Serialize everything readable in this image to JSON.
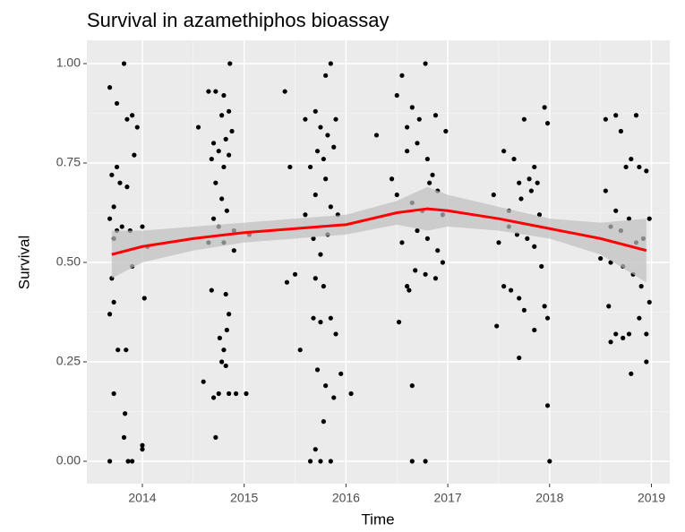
{
  "chart_data": {
    "type": "scatter",
    "title": "Survival in azamethiphos bioassay",
    "x_label": "Time",
    "y_label": "Survival",
    "point_color": "#000000",
    "x": [
      2013.68,
      2013.75,
      2013.82,
      2013.85,
      2013.9,
      2013.95,
      2013.7,
      2013.75,
      2013.78,
      2013.85,
      2013.92,
      2013.68,
      2013.72,
      2013.75,
      2013.8,
      2013.88,
      2014.0,
      2014.02,
      2013.9,
      2013.7,
      2013.68,
      2013.72,
      2013.76,
      2013.84,
      2013.72,
      2013.83,
      2013.82,
      2013.86,
      2013.9,
      2013.68,
      2014.0,
      2014.0,
      2014.05,
      2013.72,
      2014.55,
      2014.65,
      2014.72,
      2014.8,
      2014.86,
      2014.78,
      2014.85,
      2014.7,
      2014.75,
      2014.82,
      2014.88,
      2014.68,
      2014.8,
      2014.85,
      2014.72,
      2014.78,
      2014.83,
      2014.7,
      2014.9,
      2014.75,
      2014.65,
      2014.8,
      2014.68,
      2014.82,
      2014.85,
      2014.76,
      2014.8,
      2014.83,
      2014.78,
      2014.82,
      2014.6,
      2014.7,
      2014.75,
      2014.85,
      2014.92,
      2015.02,
      2014.72,
      2014.9,
      2015.05,
      2015.4,
      2015.45,
      2015.42,
      2015.5,
      2015.55,
      2015.6,
      2015.7,
      2015.8,
      2015.85,
      2015.75,
      2015.82,
      2015.9,
      2015.72,
      2015.78,
      2015.88,
      2015.65,
      2015.8,
      2015.7,
      2015.85,
      2015.92,
      2015.68,
      2015.75,
      2015.82,
      2015.7,
      2015.78,
      2015.68,
      2015.75,
      2015.85,
      2015.9,
      2015.72,
      2015.8,
      2015.88,
      2015.95,
      2016.05,
      2015.7,
      2015.65,
      2015.75,
      2015.85,
      2015.78,
      2015.6,
      2016.3,
      2016.5,
      2016.55,
      2016.6,
      2016.65,
      2016.72,
      2016.78,
      2016.88,
      2016.98,
      2016.45,
      2016.6,
      2016.7,
      2016.8,
      2016.85,
      2016.5,
      2016.65,
      2016.75,
      2016.82,
      2016.9,
      2016.95,
      2016.55,
      2016.7,
      2016.8,
      2016.9,
      2016.6,
      2016.68,
      2016.78,
      2016.88,
      2016.95,
      2016.52,
      2016.62,
      2016.65,
      2016.65,
      2016.78,
      2017.45,
      2017.55,
      2017.65,
      2017.75,
      2017.85,
      2017.95,
      2017.98,
      2017.7,
      2017.8,
      2017.88,
      2017.6,
      2017.72,
      2017.82,
      2017.9,
      2017.5,
      2017.6,
      2017.68,
      2017.78,
      2017.85,
      2017.92,
      2017.55,
      2017.62,
      2017.7,
      2017.75,
      2017.85,
      2017.95,
      2017.98,
      2017.48,
      2017.7,
      2017.98,
      2018.0,
      2018.55,
      2018.65,
      2018.85,
      2018.7,
      2018.55,
      2018.65,
      2018.75,
      2018.8,
      2018.88,
      2018.95,
      2018.6,
      2018.7,
      2018.78,
      2018.85,
      2018.92,
      2018.98,
      2018.6,
      2018.72,
      2018.82,
      2018.9,
      2018.58,
      2018.65,
      2018.72,
      2018.78,
      2018.6,
      2018.88,
      2018.98,
      2018.95,
      2018.95,
      2018.8,
      2018.5
    ],
    "values": [
      0.94,
      0.9,
      1.0,
      0.86,
      0.87,
      0.84,
      0.72,
      0.74,
      0.7,
      0.69,
      0.77,
      0.61,
      0.56,
      0.58,
      0.59,
      0.58,
      0.59,
      0.41,
      0.49,
      0.46,
      0.37,
      0.4,
      0.28,
      0.28,
      0.17,
      0.12,
      0.06,
      0.0,
      0.0,
      0.0,
      0.04,
      0.03,
      0.54,
      0.64,
      0.84,
      0.93,
      0.93,
      0.92,
      1.0,
      0.87,
      0.88,
      0.8,
      0.78,
      0.81,
      0.83,
      0.76,
      0.74,
      0.77,
      0.7,
      0.66,
      0.63,
      0.61,
      0.58,
      0.59,
      0.55,
      0.55,
      0.43,
      0.42,
      0.37,
      0.31,
      0.28,
      0.33,
      0.25,
      0.24,
      0.2,
      0.16,
      0.17,
      0.17,
      0.17,
      0.17,
      0.06,
      0.53,
      0.57,
      0.93,
      0.74,
      0.45,
      0.47,
      0.28,
      0.86,
      0.88,
      0.97,
      1.0,
      0.84,
      0.82,
      0.86,
      0.78,
      0.76,
      0.79,
      0.74,
      0.71,
      0.67,
      0.64,
      0.62,
      0.56,
      0.52,
      0.57,
      0.46,
      0.44,
      0.36,
      0.35,
      0.36,
      0.32,
      0.23,
      0.19,
      0.16,
      0.22,
      0.17,
      0.03,
      0.0,
      0.0,
      0.0,
      0.1,
      0.62,
      0.82,
      0.92,
      0.97,
      0.84,
      0.89,
      0.86,
      1.0,
      0.87,
      0.83,
      0.71,
      0.78,
      0.8,
      0.76,
      0.72,
      0.67,
      0.65,
      0.63,
      0.7,
      0.68,
      0.62,
      0.55,
      0.58,
      0.56,
      0.53,
      0.44,
      0.48,
      0.47,
      0.46,
      0.5,
      0.35,
      0.43,
      0.19,
      0.0,
      0.0,
      0.67,
      0.78,
      0.76,
      0.86,
      0.74,
      0.89,
      0.85,
      0.7,
      0.71,
      0.7,
      0.63,
      0.66,
      0.68,
      0.62,
      0.55,
      0.59,
      0.57,
      0.56,
      0.54,
      0.49,
      0.44,
      0.43,
      0.41,
      0.38,
      0.33,
      0.39,
      0.36,
      0.34,
      0.26,
      0.14,
      0.0,
      0.86,
      0.87,
      0.87,
      0.83,
      0.68,
      0.63,
      0.74,
      0.76,
      0.74,
      0.73,
      0.59,
      0.58,
      0.61,
      0.55,
      0.56,
      0.61,
      0.5,
      0.49,
      0.47,
      0.44,
      0.39,
      0.32,
      0.31,
      0.32,
      0.3,
      0.36,
      0.4,
      0.32,
      0.25,
      0.22,
      0.51
    ],
    "smooth": {
      "color": "#ff0000",
      "band_color": "#bfbfbf",
      "x": [
        2013.7,
        2014.0,
        2014.5,
        2015.0,
        2015.5,
        2016.0,
        2016.5,
        2016.8,
        2017.0,
        2017.5,
        2018.0,
        2018.5,
        2018.95
      ],
      "values": [
        0.52,
        0.54,
        0.56,
        0.575,
        0.585,
        0.595,
        0.625,
        0.635,
        0.63,
        0.61,
        0.585,
        0.56,
        0.53
      ],
      "lower": [
        0.46,
        0.5,
        0.53,
        0.55,
        0.56,
        0.57,
        0.595,
        0.58,
        0.59,
        0.58,
        0.56,
        0.52,
        0.45
      ],
      "upper": [
        0.58,
        0.58,
        0.59,
        0.6,
        0.61,
        0.62,
        0.655,
        0.69,
        0.67,
        0.64,
        0.61,
        0.6,
        0.61
      ]
    },
    "xlim": [
      2013.455,
      2019.18
    ],
    "xticks": [
      2014,
      2015,
      2016,
      2017,
      2018,
      2019
    ],
    "ylim": [
      -0.0563,
      1.0586
    ],
    "yticks": [
      {
        "value": 0,
        "label": "0.00"
      },
      {
        "value": 0.25,
        "label": "0.25"
      },
      {
        "value": 0.5,
        "label": "0.50"
      },
      {
        "value": 0.75,
        "label": "0.75"
      },
      {
        "value": 1,
        "label": "1.00"
      }
    ],
    "grid": true
  }
}
